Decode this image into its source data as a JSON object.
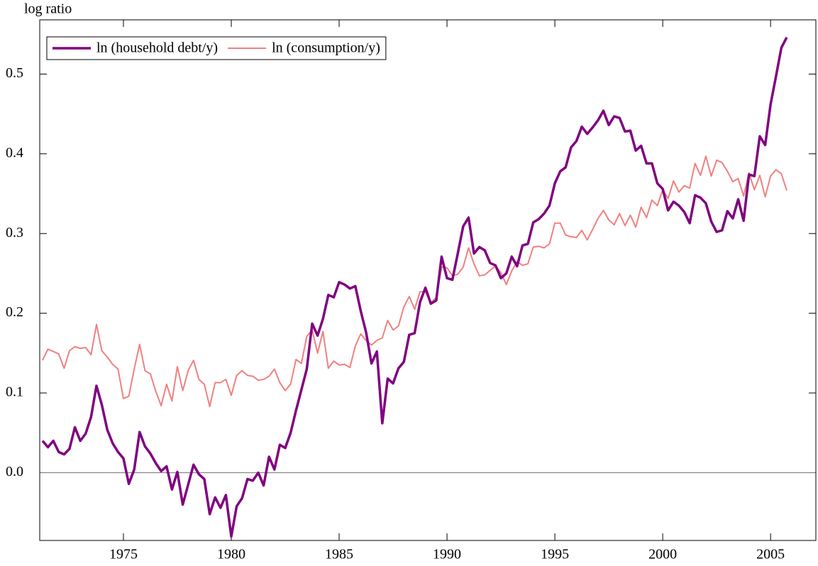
{
  "chart_data": {
    "type": "line",
    "y_label": "log ratio",
    "x": [
      1971.25,
      1971.5,
      1971.75,
      1972,
      1972.25,
      1972.5,
      1972.75,
      1973,
      1973.25,
      1973.5,
      1973.75,
      1974,
      1974.25,
      1974.5,
      1974.75,
      1975,
      1975.25,
      1975.5,
      1975.75,
      1976,
      1976.25,
      1976.5,
      1976.75,
      1977,
      1977.25,
      1977.5,
      1977.75,
      1978,
      1978.25,
      1978.5,
      1978.75,
      1979,
      1979.25,
      1979.5,
      1979.75,
      1980,
      1980.25,
      1980.5,
      1980.75,
      1981,
      1981.25,
      1981.5,
      1981.75,
      1982,
      1982.25,
      1982.5,
      1982.75,
      1983,
      1983.25,
      1983.5,
      1983.75,
      1984,
      1984.25,
      1984.5,
      1984.75,
      1985,
      1985.25,
      1985.5,
      1985.75,
      1986,
      1986.25,
      1986.5,
      1986.75,
      1987,
      1987.25,
      1987.5,
      1987.75,
      1988,
      1988.25,
      1988.5,
      1988.75,
      1989,
      1989.25,
      1989.5,
      1989.75,
      1990,
      1990.25,
      1990.5,
      1990.75,
      1991,
      1991.25,
      1991.5,
      1991.75,
      1992,
      1992.25,
      1992.5,
      1992.75,
      1993,
      1993.25,
      1993.5,
      1993.75,
      1994,
      1994.25,
      1994.5,
      1994.75,
      1995,
      1995.25,
      1995.5,
      1995.75,
      1996,
      1996.25,
      1996.5,
      1996.75,
      1997,
      1997.25,
      1997.5,
      1997.75,
      1998,
      1998.25,
      1998.5,
      1998.75,
      1999,
      1999.25,
      1999.5,
      1999.75,
      2000,
      2000.25,
      2000.5,
      2000.75,
      2001,
      2001.25,
      2001.5,
      2001.75,
      2002,
      2002.25,
      2002.5,
      2002.75,
      2003,
      2003.25,
      2003.5,
      2003.75,
      2004,
      2004.25,
      2004.5,
      2004.75,
      2005,
      2005.25,
      2005.5,
      2005.75
    ],
    "series": [
      {
        "name": "ln (household debt/y)",
        "color": "#800080",
        "width": 3.5,
        "values": [
          0.04,
          0.032,
          0.04,
          0.026,
          0.023,
          0.03,
          0.057,
          0.04,
          0.049,
          0.07,
          0.109,
          0.085,
          0.054,
          0.037,
          0.026,
          0.018,
          -0.014,
          0.004,
          0.051,
          0.033,
          0.024,
          0.012,
          0.002,
          0.008,
          -0.021,
          0.001,
          -0.04,
          -0.015,
          0.01,
          -0.002,
          -0.008,
          -0.052,
          -0.031,
          -0.044,
          -0.028,
          -0.08,
          -0.042,
          -0.032,
          -0.008,
          -0.01,
          0.0,
          -0.016,
          0.02,
          0.004,
          0.035,
          0.031,
          0.05,
          0.078,
          0.104,
          0.13,
          0.187,
          0.172,
          0.193,
          0.223,
          0.22,
          0.239,
          0.236,
          0.231,
          0.234,
          0.203,
          0.176,
          0.137,
          0.152,
          0.062,
          0.118,
          0.112,
          0.131,
          0.139,
          0.173,
          0.175,
          0.214,
          0.232,
          0.212,
          0.216,
          0.271,
          0.244,
          0.242,
          0.275,
          0.309,
          0.32,
          0.275,
          0.283,
          0.279,
          0.263,
          0.26,
          0.244,
          0.25,
          0.271,
          0.259,
          0.285,
          0.287,
          0.314,
          0.318,
          0.325,
          0.335,
          0.363,
          0.378,
          0.383,
          0.408,
          0.416,
          0.434,
          0.425,
          0.433,
          0.442,
          0.454,
          0.436,
          0.447,
          0.445,
          0.428,
          0.429,
          0.404,
          0.41,
          0.388,
          0.388,
          0.363,
          0.356,
          0.329,
          0.34,
          0.335,
          0.327,
          0.313,
          0.348,
          0.345,
          0.338,
          0.315,
          0.302,
          0.304,
          0.328,
          0.319,
          0.343,
          0.316,
          0.374,
          0.372,
          0.422,
          0.411,
          0.462,
          0.497,
          0.533,
          0.546
        ]
      },
      {
        "name": "ln (consumption/y)",
        "color": "#f08080",
        "width": 2,
        "values": [
          0.141,
          0.155,
          0.152,
          0.149,
          0.131,
          0.153,
          0.158,
          0.156,
          0.157,
          0.148,
          0.186,
          0.153,
          0.145,
          0.136,
          0.13,
          0.093,
          0.096,
          0.13,
          0.161,
          0.128,
          0.124,
          0.102,
          0.084,
          0.111,
          0.09,
          0.133,
          0.103,
          0.128,
          0.141,
          0.117,
          0.111,
          0.083,
          0.113,
          0.113,
          0.117,
          0.097,
          0.122,
          0.128,
          0.122,
          0.121,
          0.116,
          0.117,
          0.121,
          0.13,
          0.113,
          0.103,
          0.111,
          0.142,
          0.137,
          0.171,
          0.179,
          0.15,
          0.177,
          0.131,
          0.14,
          0.135,
          0.136,
          0.132,
          0.159,
          0.174,
          0.166,
          0.16,
          0.166,
          0.169,
          0.191,
          0.179,
          0.184,
          0.208,
          0.221,
          0.205,
          0.227,
          0.227,
          0.213,
          0.22,
          0.258,
          0.257,
          0.247,
          0.249,
          0.258,
          0.282,
          0.262,
          0.247,
          0.248,
          0.254,
          0.259,
          0.251,
          0.236,
          0.253,
          0.265,
          0.26,
          0.262,
          0.283,
          0.284,
          0.282,
          0.287,
          0.313,
          0.313,
          0.298,
          0.296,
          0.295,
          0.304,
          0.292,
          0.305,
          0.319,
          0.329,
          0.317,
          0.311,
          0.325,
          0.31,
          0.323,
          0.308,
          0.333,
          0.32,
          0.342,
          0.335,
          0.355,
          0.344,
          0.366,
          0.352,
          0.36,
          0.357,
          0.388,
          0.373,
          0.397,
          0.372,
          0.392,
          0.389,
          0.378,
          0.365,
          0.369,
          0.347,
          0.376,
          0.355,
          0.373,
          0.346,
          0.372,
          0.38,
          0.375,
          0.354
        ]
      }
    ],
    "xlim": [
      1971.12,
      2007.1
    ],
    "ylim": [
      -0.085,
      0.568
    ],
    "xticks": [
      1975,
      1980,
      1985,
      1990,
      1995,
      2000,
      2005
    ],
    "yticks": [
      {
        "value": 0,
        "label": "0.0"
      },
      0.1,
      0.2,
      0.3,
      0.4,
      0.5
    ],
    "zero_line": true,
    "legend": "upper left"
  }
}
